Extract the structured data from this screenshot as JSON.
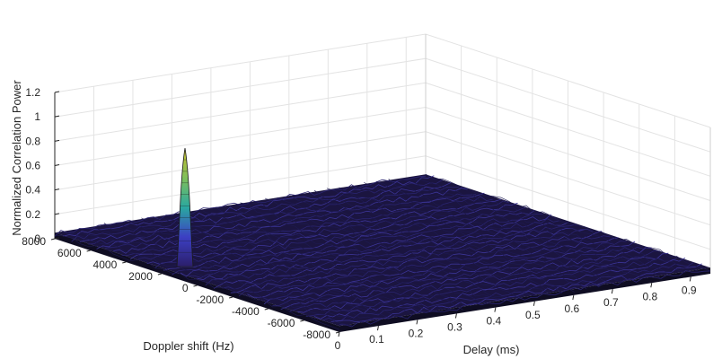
{
  "chart_data": {
    "type": "surface",
    "title": "",
    "xlabel": "Delay (ms)",
    "ylabel": "Doppler shift (Hz)",
    "zlabel": "Normalized Correlation Power",
    "x_ticks": [
      "0",
      "0.1",
      "0.2",
      "0.3",
      "0.4",
      "0.5",
      "0.6",
      "0.7",
      "0.8",
      "0.9"
    ],
    "y_ticks": [
      "8000",
      "6000",
      "4000",
      "2000",
      "0",
      "-2000",
      "-4000",
      "-6000",
      "-8000"
    ],
    "z_ticks": [
      "0",
      "0.2",
      "0.4",
      "0.6",
      "0.8",
      "1",
      "1.2"
    ],
    "xlim": [
      0,
      0.95
    ],
    "ylim": [
      -8000,
      8000
    ],
    "zlim": [
      0,
      1.2
    ],
    "grid": true,
    "colormap": "parula",
    "peak": {
      "delay_ms": 0.06,
      "doppler_hz": 2000,
      "value": 1.0
    },
    "noise_floor": 0.05,
    "colors": {
      "surface_dark": "#1b1540",
      "grid": "#e3e3e3",
      "axis": "#262626",
      "peak_top": "#c9be2c",
      "peak_mid": "#2aa8a0",
      "peak_low": "#3c3fc4"
    }
  }
}
